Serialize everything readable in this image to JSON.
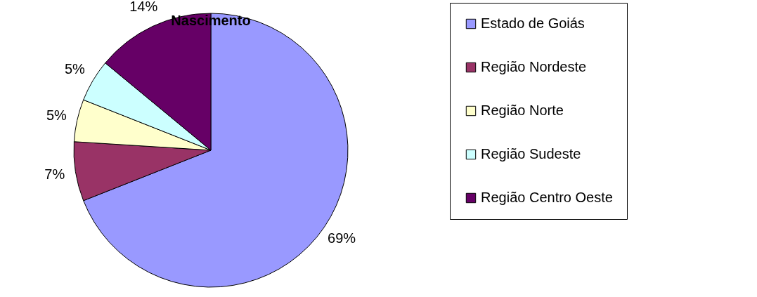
{
  "chart_data": {
    "type": "pie",
    "title": "Nascimento",
    "categories": [
      "Estado de Goiás",
      "Região Nordeste",
      "Região Norte",
      "Região Sudeste",
      "Região Centro Oeste"
    ],
    "values": [
      69,
      7,
      5,
      5,
      14
    ],
    "colors": [
      "#9999ff",
      "#993366",
      "#ffffcc",
      "#ccffff",
      "#660066"
    ],
    "value_labels": [
      "69%",
      "7%",
      "5%",
      "5%",
      "14%"
    ],
    "legend": "right"
  }
}
